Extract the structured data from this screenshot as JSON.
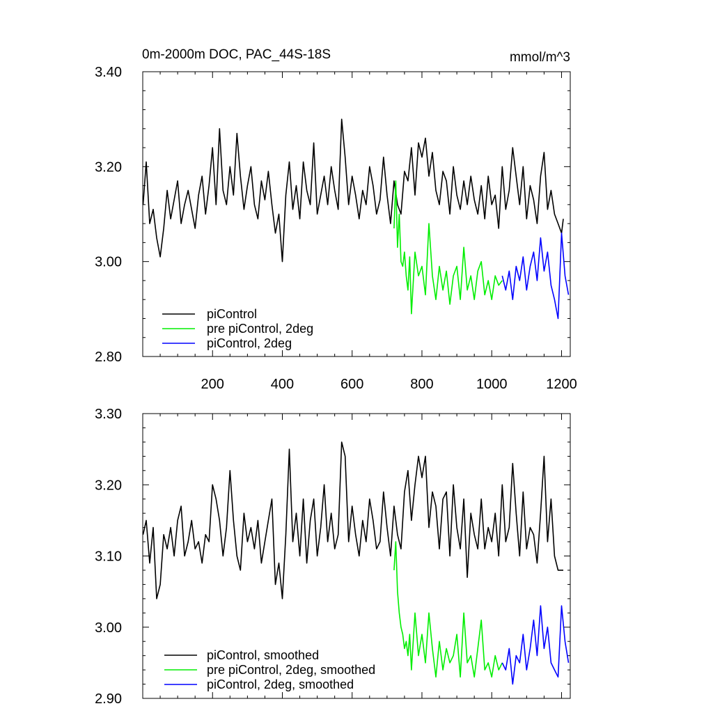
{
  "chart_data": [
    {
      "type": "line",
      "title": "0m-2000m DOC, PAC_44S-18S",
      "units": "mmol/m^3",
      "xlim": [
        0,
        1225
      ],
      "ylim": [
        2.8,
        3.4
      ],
      "xticks": [
        200,
        400,
        600,
        800,
        1000,
        1200
      ],
      "xtick_labels": [
        "200",
        "400",
        "600",
        "800",
        "1000",
        "1200"
      ],
      "yticks": [
        2.8,
        3.0,
        3.2,
        3.4
      ],
      "ytick_labels": [
        "2.80",
        "3.00",
        "3.20",
        "3.40"
      ],
      "legend_position": "bottom-left",
      "series": [
        {
          "name": "piControl",
          "color": "#000000",
          "x": [
            1,
            10,
            20,
            30,
            40,
            50,
            60,
            70,
            80,
            90,
            100,
            110,
            120,
            130,
            140,
            150,
            160,
            170,
            180,
            190,
            200,
            210,
            220,
            230,
            240,
            250,
            260,
            270,
            280,
            290,
            300,
            310,
            320,
            330,
            340,
            350,
            360,
            370,
            380,
            390,
            400,
            410,
            420,
            430,
            440,
            450,
            460,
            470,
            480,
            490,
            500,
            510,
            520,
            530,
            540,
            550,
            560,
            570,
            580,
            590,
            600,
            610,
            620,
            630,
            640,
            650,
            660,
            670,
            680,
            690,
            700,
            710,
            720,
            730,
            740,
            750,
            760,
            770,
            780,
            790,
            800,
            810,
            820,
            830,
            840,
            850,
            860,
            870,
            880,
            890,
            900,
            910,
            920,
            930,
            940,
            950,
            960,
            970,
            980,
            990,
            1000,
            1010,
            1020,
            1030,
            1040,
            1050,
            1060,
            1070,
            1080,
            1090,
            1100,
            1110,
            1120,
            1130,
            1140,
            1150,
            1160,
            1170,
            1180,
            1190,
            1200,
            1205
          ],
          "y": [
            3.12,
            3.21,
            3.08,
            3.11,
            3.05,
            3.01,
            3.07,
            3.15,
            3.09,
            3.13,
            3.17,
            3.08,
            3.12,
            3.15,
            3.11,
            3.07,
            3.14,
            3.18,
            3.1,
            3.16,
            3.24,
            3.12,
            3.28,
            3.15,
            3.12,
            3.2,
            3.14,
            3.27,
            3.18,
            3.11,
            3.16,
            3.2,
            3.12,
            3.09,
            3.17,
            3.13,
            3.19,
            3.12,
            3.06,
            3.1,
            3.0,
            3.14,
            3.21,
            3.11,
            3.16,
            3.09,
            3.21,
            3.15,
            3.12,
            3.25,
            3.1,
            3.14,
            3.18,
            3.12,
            3.2,
            3.15,
            3.11,
            3.3,
            3.22,
            3.12,
            3.18,
            3.14,
            3.09,
            3.15,
            3.12,
            3.2,
            3.16,
            3.1,
            3.13,
            3.22,
            3.14,
            3.08,
            3.17,
            3.12,
            3.1,
            3.19,
            3.17,
            3.24,
            3.14,
            3.25,
            3.22,
            3.26,
            3.18,
            3.23,
            3.15,
            3.12,
            3.19,
            3.17,
            3.1,
            3.2,
            3.14,
            3.11,
            3.17,
            3.12,
            3.18,
            3.13,
            3.1,
            3.16,
            3.09,
            3.18,
            3.12,
            3.14,
            3.07,
            3.2,
            3.11,
            3.15,
            3.24,
            3.18,
            3.12,
            3.2,
            3.09,
            3.16,
            3.13,
            3.08,
            3.18,
            3.23,
            3.11,
            3.15,
            3.1,
            3.08,
            3.06,
            3.09
          ]
        },
        {
          "name": "pre piControl, 2deg",
          "color": "#00ee00",
          "x": [
            720,
            725,
            730,
            735,
            740,
            745,
            750,
            755,
            760,
            765,
            770,
            780,
            790,
            800,
            810,
            820,
            830,
            840,
            850,
            860,
            870,
            880,
            890,
            900,
            910,
            920,
            930,
            940,
            950,
            960,
            970,
            980,
            990,
            1000,
            1010,
            1020,
            1030
          ],
          "y": [
            3.07,
            3.17,
            3.03,
            3.1,
            3.0,
            2.99,
            3.02,
            2.97,
            2.94,
            3.01,
            2.89,
            3.02,
            2.97,
            2.99,
            2.93,
            3.08,
            2.97,
            2.92,
            2.99,
            2.94,
            2.98,
            2.91,
            2.97,
            2.99,
            2.92,
            3.03,
            2.94,
            2.97,
            2.92,
            2.98,
            3.0,
            2.93,
            2.96,
            2.92,
            2.97,
            2.95,
            2.96
          ]
        },
        {
          "name": "piControl, 2deg",
          "color": "#0000ff",
          "x": [
            1030,
            1040,
            1050,
            1060,
            1070,
            1080,
            1090,
            1100,
            1110,
            1120,
            1130,
            1140,
            1150,
            1160,
            1170,
            1180,
            1190,
            1200,
            1210,
            1220
          ],
          "y": [
            2.97,
            2.94,
            2.98,
            2.92,
            2.99,
            2.96,
            3.01,
            2.94,
            2.99,
            3.02,
            2.96,
            3.05,
            2.98,
            3.02,
            2.95,
            2.92,
            2.88,
            3.06,
            2.97,
            2.93
          ]
        }
      ]
    },
    {
      "type": "line",
      "xlim": [
        0,
        1225
      ],
      "ylim": [
        2.9,
        3.3
      ],
      "xticks": [
        200,
        400,
        600,
        800,
        1000,
        1200
      ],
      "yticks": [
        2.9,
        3.0,
        3.1,
        3.2,
        3.3
      ],
      "ytick_labels": [
        "2.90",
        "3.00",
        "3.10",
        "3.20",
        "3.30"
      ],
      "legend_position": "bottom-left",
      "series": [
        {
          "name": "piControl, smoothed",
          "color": "#000000",
          "x": [
            1,
            10,
            20,
            30,
            40,
            50,
            60,
            70,
            80,
            90,
            100,
            110,
            120,
            130,
            140,
            150,
            160,
            170,
            180,
            190,
            200,
            210,
            220,
            230,
            240,
            250,
            260,
            270,
            280,
            290,
            300,
            310,
            320,
            330,
            340,
            350,
            360,
            370,
            380,
            390,
            400,
            410,
            420,
            430,
            440,
            450,
            460,
            470,
            480,
            490,
            500,
            510,
            520,
            530,
            540,
            550,
            560,
            570,
            580,
            590,
            600,
            610,
            620,
            630,
            640,
            650,
            660,
            670,
            680,
            690,
            700,
            710,
            720,
            730,
            740,
            750,
            760,
            770,
            780,
            790,
            800,
            810,
            820,
            830,
            840,
            850,
            860,
            870,
            880,
            890,
            900,
            910,
            920,
            930,
            940,
            950,
            960,
            970,
            980,
            990,
            1000,
            1010,
            1020,
            1030,
            1040,
            1050,
            1060,
            1070,
            1080,
            1090,
            1100,
            1110,
            1120,
            1130,
            1140,
            1150,
            1160,
            1170,
            1180,
            1190,
            1200,
            1205
          ],
          "y": [
            3.13,
            3.15,
            3.09,
            3.14,
            3.04,
            3.06,
            3.13,
            3.11,
            3.14,
            3.1,
            3.15,
            3.17,
            3.1,
            3.12,
            3.15,
            3.11,
            3.12,
            3.09,
            3.13,
            3.12,
            3.2,
            3.18,
            3.15,
            3.1,
            3.14,
            3.22,
            3.15,
            3.1,
            3.08,
            3.16,
            3.12,
            3.14,
            3.11,
            3.15,
            3.09,
            3.12,
            3.15,
            3.18,
            3.06,
            3.09,
            3.04,
            3.13,
            3.25,
            3.12,
            3.16,
            3.1,
            3.18,
            3.09,
            3.15,
            3.18,
            3.1,
            3.14,
            3.2,
            3.12,
            3.16,
            3.11,
            3.13,
            3.26,
            3.24,
            3.12,
            3.17,
            3.13,
            3.1,
            3.15,
            3.12,
            3.18,
            3.15,
            3.11,
            3.12,
            3.19,
            3.14,
            3.1,
            3.17,
            3.13,
            3.11,
            3.19,
            3.22,
            3.15,
            3.2,
            3.24,
            3.21,
            3.24,
            3.14,
            3.19,
            3.17,
            3.11,
            3.18,
            3.19,
            3.1,
            3.2,
            3.14,
            3.11,
            3.18,
            3.07,
            3.16,
            3.13,
            3.11,
            3.18,
            3.11,
            3.14,
            3.12,
            3.16,
            3.1,
            3.2,
            3.12,
            3.14,
            3.23,
            3.16,
            3.1,
            3.19,
            3.11,
            3.14,
            3.13,
            3.09,
            3.16,
            3.24,
            3.12,
            3.18,
            3.1,
            3.08,
            3.08,
            3.08
          ]
        },
        {
          "name": "pre piControl, 2deg, smoothed",
          "color": "#00ee00",
          "x": [
            720,
            725,
            730,
            735,
            740,
            745,
            750,
            755,
            760,
            765,
            770,
            780,
            790,
            800,
            810,
            820,
            830,
            840,
            850,
            860,
            870,
            880,
            890,
            900,
            910,
            920,
            930,
            940,
            950,
            960,
            970,
            980,
            990,
            1000,
            1010,
            1020,
            1030
          ],
          "y": [
            3.08,
            3.12,
            3.05,
            3.02,
            3.0,
            2.99,
            2.97,
            2.98,
            2.96,
            2.99,
            2.94,
            3.02,
            2.96,
            2.99,
            2.95,
            3.02,
            2.97,
            2.93,
            2.98,
            2.94,
            2.97,
            2.95,
            2.96,
            2.99,
            2.93,
            3.02,
            2.95,
            2.96,
            2.93,
            2.97,
            3.01,
            2.94,
            2.95,
            2.93,
            2.96,
            2.94,
            2.95
          ]
        },
        {
          "name": "piControl, 2deg, smoothed",
          "color": "#0000ff",
          "x": [
            1030,
            1040,
            1050,
            1060,
            1070,
            1080,
            1090,
            1100,
            1110,
            1120,
            1130,
            1140,
            1150,
            1160,
            1170,
            1180,
            1190,
            1200,
            1210,
            1220
          ],
          "y": [
            2.95,
            2.94,
            2.97,
            2.92,
            2.96,
            2.95,
            2.99,
            2.94,
            2.97,
            3.01,
            2.96,
            3.03,
            2.97,
            3.0,
            2.95,
            2.94,
            2.93,
            3.03,
            2.98,
            2.95
          ]
        }
      ]
    }
  ]
}
